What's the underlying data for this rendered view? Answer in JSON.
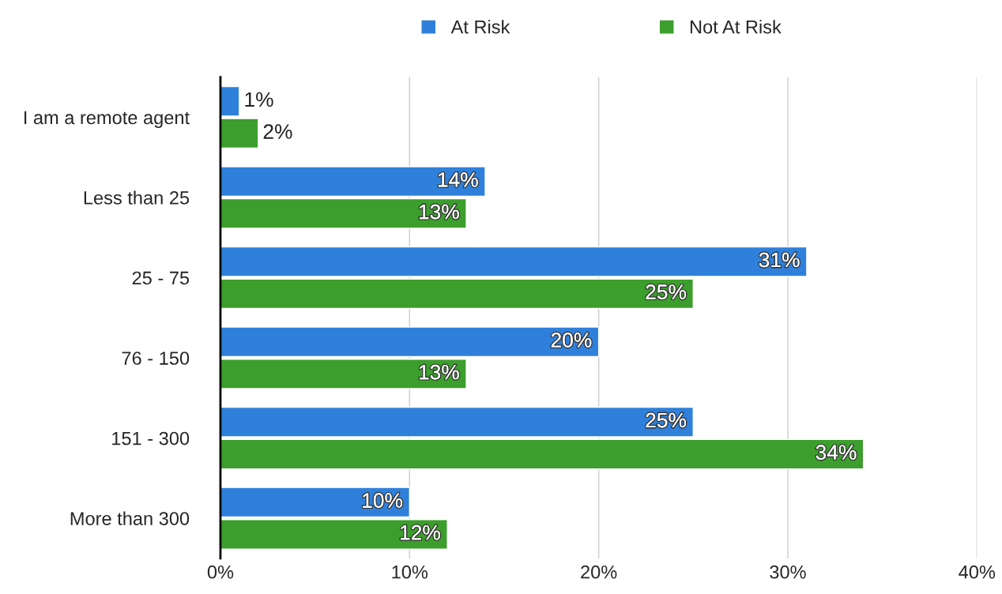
{
  "chart_data": {
    "type": "bar",
    "orientation": "horizontal",
    "categories": [
      "I am a remote agent",
      "Less than 25",
      "25 - 75",
      "76 - 150",
      "151 - 300",
      "More than 300"
    ],
    "series": [
      {
        "name": "At Risk",
        "color": "#2f80db",
        "values": [
          1,
          14,
          31,
          20,
          25,
          10
        ],
        "value_labels": [
          "1%",
          "14%",
          "31%",
          "20%",
          "25%",
          "10%"
        ]
      },
      {
        "name": "Not At Risk",
        "color": "#3c9e2c",
        "values": [
          2,
          13,
          25,
          13,
          34,
          12
        ],
        "value_labels": [
          "2%",
          "13%",
          "25%",
          "13%",
          "34%",
          "12%"
        ]
      }
    ],
    "xlim": [
      0,
      40
    ],
    "xticks": [
      {
        "value": 0,
        "label": "0%"
      },
      {
        "value": 10,
        "label": "10%"
      },
      {
        "value": 20,
        "label": "20%"
      },
      {
        "value": 30,
        "label": "30%"
      },
      {
        "value": 40,
        "label": "40%"
      }
    ],
    "grid": "x",
    "legend": "top"
  }
}
